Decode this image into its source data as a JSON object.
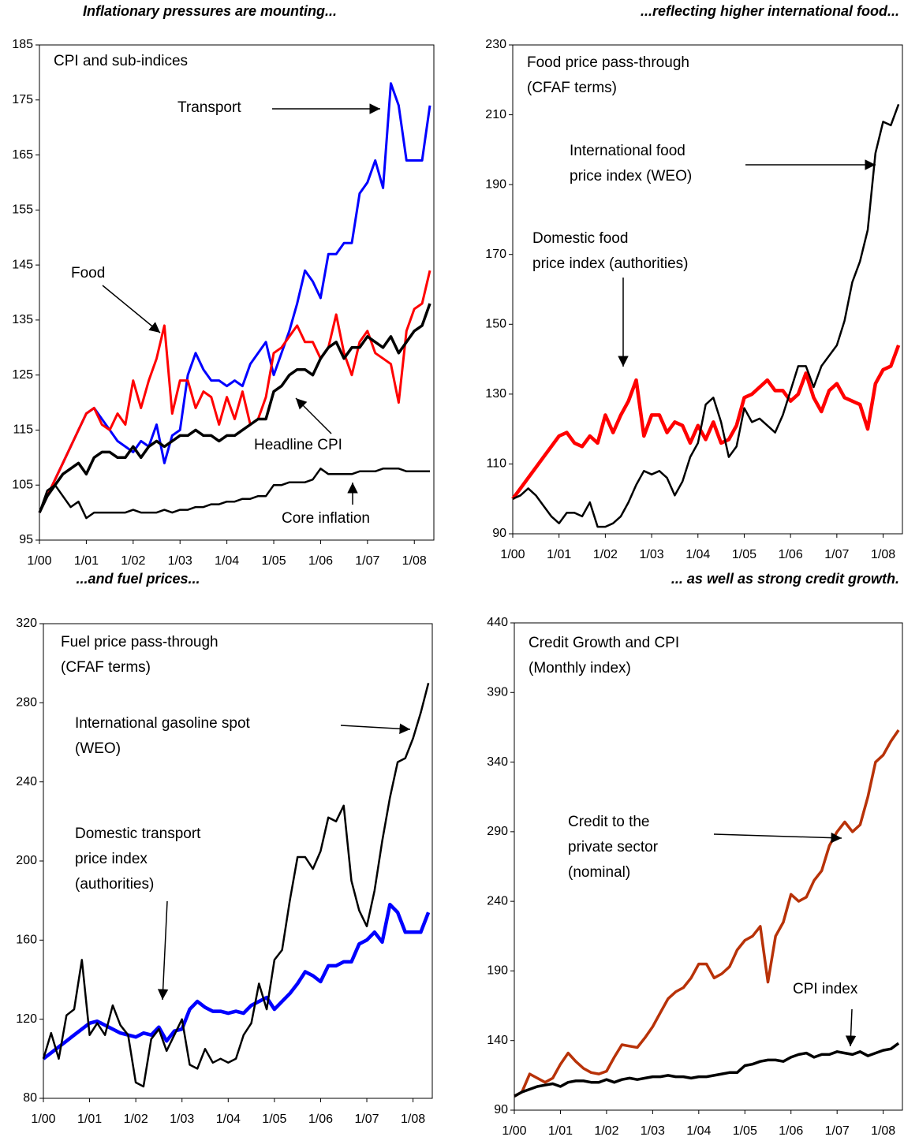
{
  "chart_data": [
    {
      "type": "line",
      "title": "Inflationary pressures are mounting...",
      "annotations": [
        [
          "CPI and sub-indices"
        ],
        [
          "Transport"
        ],
        [
          "Food"
        ],
        [
          "Headline CPI"
        ],
        [
          "Core inflation"
        ]
      ],
      "x": [
        "1/00",
        "3/00",
        "5/00",
        "7/00",
        "9/00",
        "11/00",
        "1/01",
        "3/01",
        "5/01",
        "7/01",
        "9/01",
        "11/01",
        "1/02",
        "3/02",
        "5/02",
        "7/02",
        "9/02",
        "11/02",
        "1/03",
        "3/03",
        "5/03",
        "7/03",
        "9/03",
        "11/03",
        "1/04",
        "3/04",
        "5/04",
        "7/04",
        "9/04",
        "11/04",
        "1/05",
        "3/05",
        "5/05",
        "7/05",
        "9/05",
        "11/05",
        "1/06",
        "3/06",
        "5/06",
        "7/06",
        "9/06",
        "11/06",
        "1/07",
        "3/07",
        "5/07",
        "7/07",
        "9/07",
        "11/07",
        "1/08",
        "3/08",
        "5/08"
      ],
      "xlim": [
        "1/00",
        "6/08"
      ],
      "xticks": [
        "1/00",
        "1/01",
        "1/02",
        "1/03",
        "1/04",
        "1/05",
        "1/06",
        "1/07",
        "1/08"
      ],
      "ylim": [
        95,
        185
      ],
      "yticks": [
        95,
        105,
        115,
        125,
        135,
        145,
        155,
        165,
        175,
        185
      ],
      "series": [
        {
          "color": "#0000ff",
          "values": [
            100,
            103,
            106,
            109,
            112,
            115,
            118,
            119,
            117,
            115,
            113,
            112,
            111,
            113,
            112,
            116,
            109,
            114,
            115,
            125,
            129,
            126,
            124,
            124,
            123,
            124,
            123,
            127,
            129,
            131,
            125,
            129,
            133,
            138,
            144,
            142,
            139,
            147,
            147,
            149,
            149,
            158,
            160,
            164,
            159,
            178,
            174,
            164,
            164,
            164,
            174
          ]
        },
        {
          "color": "#ff0000",
          "values": [
            100,
            103,
            106,
            109,
            112,
            115,
            118,
            119,
            116,
            115,
            118,
            116,
            124,
            119,
            124,
            128,
            134,
            118,
            124,
            124,
            119,
            122,
            121,
            116,
            121,
            117,
            122,
            116,
            117,
            121,
            129,
            130,
            132,
            134,
            131,
            131,
            128,
            130,
            136,
            129,
            125,
            131,
            133,
            129,
            128,
            127,
            120,
            133,
            137,
            138,
            144
          ]
        },
        {
          "color": "#000000",
          "values": [
            100,
            103,
            105,
            107,
            108,
            109,
            107,
            110,
            111,
            111,
            110,
            110,
            112,
            110,
            112,
            113,
            112,
            113,
            114,
            114,
            115,
            114,
            114,
            113,
            114,
            114,
            115,
            116,
            117,
            117,
            122,
            123,
            125,
            126,
            126,
            125,
            128,
            130,
            131,
            128,
            130,
            130,
            132,
            131,
            130,
            132,
            129,
            131,
            133,
            134,
            138
          ]
        },
        {
          "color": "#000000",
          "values": [
            100,
            104,
            105,
            103,
            101,
            102,
            99,
            100,
            100,
            100,
            100,
            100,
            100.5,
            100,
            100,
            100,
            100.5,
            100,
            100.5,
            100.5,
            101,
            101,
            101.5,
            101.5,
            102,
            102,
            102.5,
            102.5,
            103,
            103,
            105,
            105,
            105.5,
            105.5,
            105.5,
            106,
            108,
            107,
            107,
            107,
            107,
            107.5,
            107.5,
            107.5,
            108,
            108,
            108,
            107.5,
            107.5,
            107.5,
            107.5
          ]
        }
      ]
    },
    {
      "type": "line",
      "title": "...reflecting higher international food...",
      "annotations": [
        [
          "Food price pass-through",
          "(CFAF terms)"
        ],
        [
          "International food",
          "price index (WEO)"
        ],
        [
          "Domestic food",
          "price index (authorities)"
        ]
      ],
      "x": [
        "1/00",
        "3/00",
        "5/00",
        "7/00",
        "9/00",
        "11/00",
        "1/01",
        "3/01",
        "5/01",
        "7/01",
        "9/01",
        "11/01",
        "1/02",
        "3/02",
        "5/02",
        "7/02",
        "9/02",
        "11/02",
        "1/03",
        "3/03",
        "5/03",
        "7/03",
        "9/03",
        "11/03",
        "1/04",
        "3/04",
        "5/04",
        "7/04",
        "9/04",
        "11/04",
        "1/05",
        "3/05",
        "5/05",
        "7/05",
        "9/05",
        "11/05",
        "1/06",
        "3/06",
        "5/06",
        "7/06",
        "9/06",
        "11/06",
        "1/07",
        "3/07",
        "5/07",
        "7/07",
        "9/07",
        "11/07",
        "1/08",
        "3/08",
        "5/08"
      ],
      "xlim": [
        "1/00",
        "6/08"
      ],
      "xticks": [
        "1/00",
        "1/01",
        "1/02",
        "1/03",
        "1/04",
        "1/05",
        "1/06",
        "1/07",
        "1/08"
      ],
      "ylim": [
        90,
        230
      ],
      "yticks": [
        90,
        110,
        130,
        150,
        170,
        190,
        210,
        230
      ],
      "series": [
        {
          "color": "#ff0000",
          "values": [
            100,
            103,
            106,
            109,
            112,
            115,
            118,
            119,
            116,
            115,
            118,
            116,
            124,
            119,
            124,
            128,
            134,
            118,
            124,
            124,
            119,
            122,
            121,
            116,
            121,
            117,
            122,
            116,
            117,
            121,
            129,
            130,
            132,
            134,
            131,
            131,
            128,
            130,
            136,
            129,
            125,
            131,
            133,
            129,
            128,
            127,
            120,
            133,
            137,
            138,
            144
          ]
        },
        {
          "color": "#000000",
          "values": [
            100,
            101,
            103,
            101,
            98,
            95,
            93,
            96,
            96,
            95,
            99,
            92,
            92,
            93,
            95,
            99,
            104,
            108,
            107,
            108,
            106,
            101,
            105,
            112,
            116,
            127,
            129,
            122,
            112,
            115,
            126,
            122,
            123,
            121,
            119,
            124,
            131,
            138,
            138,
            132,
            138,
            141,
            144,
            151,
            162,
            168,
            177,
            199,
            208,
            207,
            213
          ]
        }
      ]
    },
    {
      "type": "line",
      "title": "...and fuel prices...",
      "annotations": [
        [
          "Fuel price pass-through",
          "(CFAF terms)"
        ],
        [
          "International gasoline spot",
          "(WEO)"
        ],
        [
          "Domestic transport",
          "price index",
          "(authorities)"
        ]
      ],
      "x": [
        "1/00",
        "3/00",
        "5/00",
        "7/00",
        "9/00",
        "11/00",
        "1/01",
        "3/01",
        "5/01",
        "7/01",
        "9/01",
        "11/01",
        "1/02",
        "3/02",
        "5/02",
        "7/02",
        "9/02",
        "11/02",
        "1/03",
        "3/03",
        "5/03",
        "7/03",
        "9/03",
        "11/03",
        "1/04",
        "3/04",
        "5/04",
        "7/04",
        "9/04",
        "11/04",
        "1/05",
        "3/05",
        "5/05",
        "7/05",
        "9/05",
        "11/05",
        "1/06",
        "3/06",
        "5/06",
        "7/06",
        "9/06",
        "11/06",
        "1/07",
        "3/07",
        "5/07",
        "7/07",
        "9/07",
        "11/07",
        "1/08",
        "3/08",
        "5/08"
      ],
      "xlim": [
        "1/00",
        "6/08"
      ],
      "xticks": [
        "1/00",
        "1/01",
        "1/02",
        "1/03",
        "1/04",
        "1/05",
        "1/06",
        "1/07",
        "1/08"
      ],
      "ylim": [
        80,
        320
      ],
      "yticks": [
        80,
        120,
        160,
        200,
        240,
        280,
        320
      ],
      "series": [
        {
          "color": "#0000ff",
          "values": [
            100,
            103,
            106,
            109,
            112,
            115,
            118,
            119,
            117,
            115,
            113,
            112,
            111,
            113,
            112,
            116,
            109,
            114,
            115,
            125,
            129,
            126,
            124,
            124,
            123,
            124,
            123,
            127,
            129,
            131,
            125,
            129,
            133,
            138,
            144,
            142,
            139,
            147,
            147,
            149,
            149,
            158,
            160,
            164,
            159,
            178,
            174,
            164,
            164,
            164,
            174
          ]
        },
        {
          "color": "#000000",
          "values": [
            100,
            113,
            100,
            122,
            125,
            150,
            112,
            118,
            112,
            127,
            117,
            112,
            88,
            86,
            110,
            115,
            104,
            112,
            120,
            97,
            95,
            105,
            98,
            100,
            98,
            100,
            112,
            118,
            138,
            125,
            150,
            155,
            180,
            202,
            202,
            196,
            205,
            222,
            220,
            228,
            190,
            175,
            167,
            185,
            210,
            232,
            250,
            252,
            262,
            275,
            290
          ]
        }
      ]
    },
    {
      "type": "line",
      "title": "... as well as strong credit growth.",
      "annotations": [
        [
          "Credit Growth and CPI",
          "(Monthly index)"
        ],
        [
          "Credit to the",
          "private sector",
          "(nominal)"
        ],
        [
          "CPI index"
        ]
      ],
      "x": [
        "1/00",
        "3/00",
        "5/00",
        "7/00",
        "9/00",
        "11/00",
        "1/01",
        "3/01",
        "5/01",
        "7/01",
        "9/01",
        "11/01",
        "1/02",
        "3/02",
        "5/02",
        "7/02",
        "9/02",
        "11/02",
        "1/03",
        "3/03",
        "5/03",
        "7/03",
        "9/03",
        "11/03",
        "1/04",
        "3/04",
        "5/04",
        "7/04",
        "9/04",
        "11/04",
        "1/05",
        "3/05",
        "5/05",
        "7/05",
        "9/05",
        "11/05",
        "1/06",
        "3/06",
        "5/06",
        "7/06",
        "9/06",
        "11/06",
        "1/07",
        "3/07",
        "5/07",
        "7/07",
        "9/07",
        "11/07",
        "1/08",
        "3/08",
        "5/08"
      ],
      "xlim": [
        "1/00",
        "6/08"
      ],
      "xticks": [
        "1/00",
        "1/01",
        "1/02",
        "1/03",
        "1/04",
        "1/05",
        "1/06",
        "1/07",
        "1/08"
      ],
      "ylim": [
        90,
        440
      ],
      "yticks": [
        90,
        140,
        190,
        240,
        290,
        340,
        390,
        440
      ],
      "series": [
        {
          "color": "#b83208",
          "values": [
            100,
            103,
            116,
            113,
            110,
            113,
            123,
            131,
            125,
            120,
            117,
            116,
            118,
            128,
            137,
            136,
            135,
            142,
            150,
            160,
            170,
            175,
            178,
            185,
            195,
            195,
            185,
            188,
            193,
            205,
            212,
            215,
            222,
            182,
            215,
            225,
            245,
            240,
            243,
            255,
            262,
            280,
            290,
            297,
            290,
            295,
            315,
            340,
            345,
            355,
            363
          ]
        },
        {
          "color": "#000000",
          "values": [
            100,
            103,
            105,
            107,
            108,
            109,
            107,
            110,
            111,
            111,
            110,
            110,
            112,
            110,
            112,
            113,
            112,
            113,
            114,
            114,
            115,
            114,
            114,
            113,
            114,
            114,
            115,
            116,
            117,
            117,
            122,
            123,
            125,
            126,
            126,
            125,
            128,
            130,
            131,
            128,
            130,
            130,
            132,
            131,
            130,
            132,
            129,
            131,
            133,
            134,
            138
          ]
        }
      ]
    }
  ]
}
